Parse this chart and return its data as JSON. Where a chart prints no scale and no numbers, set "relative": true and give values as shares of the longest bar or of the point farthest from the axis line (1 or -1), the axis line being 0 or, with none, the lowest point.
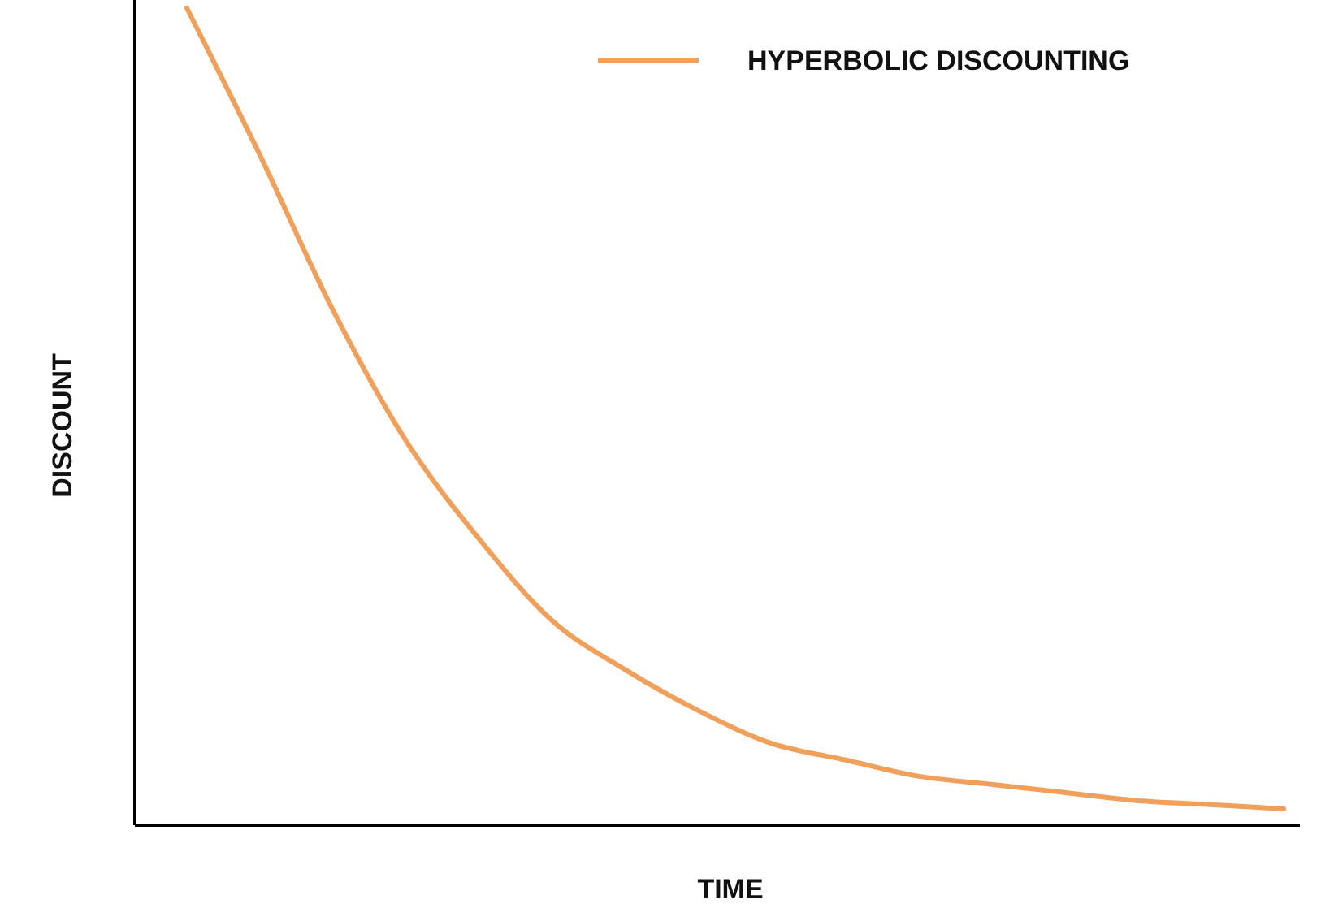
{
  "chart_data": {
    "type": "line",
    "relative": true,
    "xlabel": "TIME",
    "ylabel": "DISCOUNT",
    "legend": "top right",
    "marker": "none",
    "line_style": "solid",
    "categories": [
      null,
      null,
      null,
      null,
      null,
      null,
      null,
      null,
      null,
      null,
      null,
      null,
      null,
      null,
      null,
      null
    ],
    "series": [
      {
        "name": "HYPERBOLIC DISCOUNTING",
        "color": "#f0a05a",
        "values": [
          1.0,
          0.82,
          0.63,
          0.47,
          0.35,
          0.25,
          0.19,
          0.14,
          0.1,
          0.08,
          0.06,
          0.05,
          0.04,
          0.03,
          0.025,
          0.02
        ]
      }
    ]
  }
}
